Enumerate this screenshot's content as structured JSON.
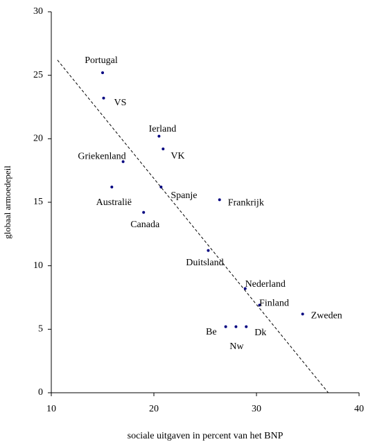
{
  "chart_data": {
    "type": "scatter",
    "x_label": "sociale uitgaven in percent van het BNP",
    "y_label": "globaal armoedepeil",
    "categories": [
      "Portugal",
      "VS",
      "Ierland",
      "VK",
      "Griekenland",
      "Australië",
      "Spanje",
      "Frankrijk",
      "Canada",
      "Duitsland",
      "Nederland",
      "Finland",
      "Zweden",
      "Be",
      "Nw",
      "Dk"
    ],
    "x": [
      15.0,
      15.1,
      20.5,
      20.9,
      17.0,
      15.9,
      20.7,
      26.4,
      19.0,
      25.3,
      28.9,
      30.3,
      34.5,
      27.0,
      28.0,
      29.0
    ],
    "values": [
      25.2,
      23.2,
      20.2,
      19.2,
      18.2,
      16.2,
      16.2,
      15.2,
      14.2,
      11.2,
      8.2,
      6.9,
      6.2,
      5.2,
      5.2,
      5.2
    ],
    "color": "#000080",
    "trendline": {
      "x": [
        10.6,
        37.0
      ],
      "y": [
        26.2,
        0
      ]
    },
    "xlim": [
      10,
      40
    ],
    "xticks": [
      10,
      20,
      30,
      40
    ],
    "ylim": [
      0,
      30
    ],
    "yticks": [
      0,
      5,
      10,
      15,
      20,
      25,
      30
    ]
  }
}
